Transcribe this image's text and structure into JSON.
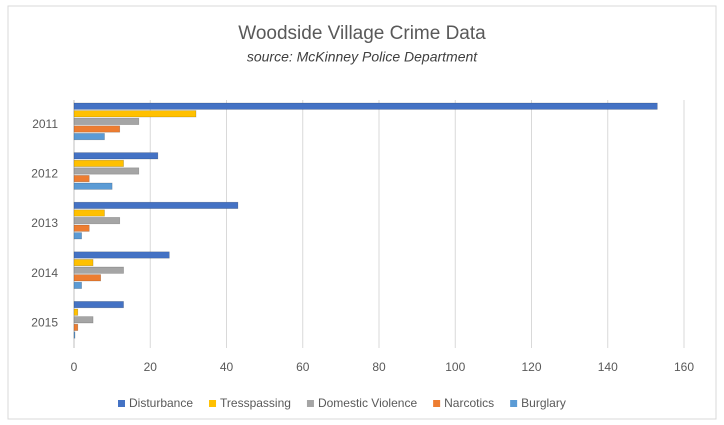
{
  "chart_data": {
    "type": "hbar",
    "title": "Woodside Village Crime Data",
    "subtitle": "source: McKinney Police Department",
    "categories": [
      "2011",
      "2012",
      "2013",
      "2014",
      "2015"
    ],
    "series": [
      {
        "name": "Disturbance",
        "color": "#4472c4",
        "values": [
          153,
          22,
          43,
          25,
          13
        ]
      },
      {
        "name": "Tresspassing",
        "color": "#ffc000",
        "values": [
          32,
          13,
          8,
          5,
          1
        ]
      },
      {
        "name": "Domestic Violence",
        "color": "#a5a5a5",
        "values": [
          17,
          17,
          12,
          13,
          5
        ]
      },
      {
        "name": "Narcotics",
        "color": "#ed7d31",
        "values": [
          12,
          4,
          4,
          7,
          1
        ]
      },
      {
        "name": "Burglary",
        "color": "#5b9bd5",
        "values": [
          8,
          10,
          2,
          2,
          0
        ]
      }
    ],
    "xlim": [
      0,
      160
    ],
    "xticks": [
      0,
      20,
      40,
      60,
      80,
      100,
      120,
      140,
      160
    ],
    "grid": true,
    "legend": "bottom"
  }
}
